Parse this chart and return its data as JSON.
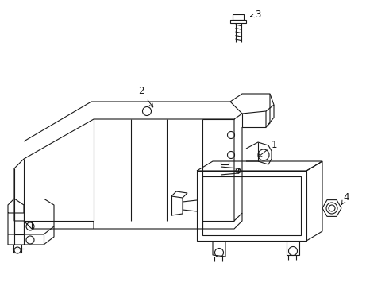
{
  "background_color": "#ffffff",
  "line_color": "#1a1a1a",
  "line_width": 0.8,
  "figsize": [
    4.9,
    3.6
  ],
  "dpi": 100
}
